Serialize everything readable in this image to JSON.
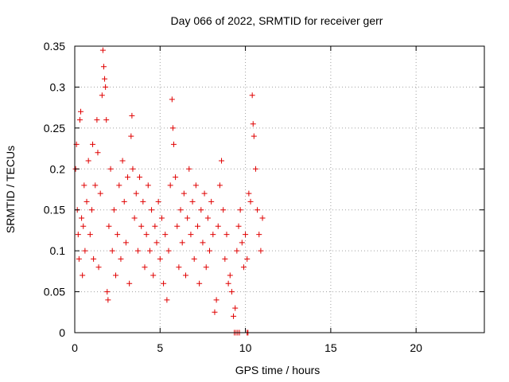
{
  "chart_data": {
    "type": "scatter",
    "title": "Day 066 of 2022, SRMTID for receiver gerr",
    "xlabel": "GPS time / hours",
    "ylabel": "SRMTID / TECUs",
    "xlim": [
      0,
      24
    ],
    "ylim": [
      0,
      0.35
    ],
    "xticks": [
      0,
      5,
      10,
      15,
      20
    ],
    "xtick_labels": [
      "0",
      "5",
      "10",
      "15",
      "20"
    ],
    "yticks": [
      0,
      0.05,
      0.1,
      0.15,
      0.2,
      0.25,
      0.3,
      0.35
    ],
    "ytick_labels": [
      "0",
      "0.05",
      "0.1",
      "0.15",
      "0.2",
      "0.25",
      "0.3",
      "0.35"
    ],
    "grid": true,
    "marker": "plus",
    "color": "#e00000",
    "series": [
      {
        "points": [
          [
            0.05,
            0.2
          ],
          [
            0.1,
            0.23
          ],
          [
            0.15,
            0.15
          ],
          [
            0.2,
            0.12
          ],
          [
            0.25,
            0.09
          ],
          [
            0.3,
            0.26
          ],
          [
            0.35,
            0.27
          ],
          [
            0.4,
            0.14
          ],
          [
            0.45,
            0.07
          ],
          [
            0.5,
            0.13
          ],
          [
            0.55,
            0.18
          ],
          [
            0.6,
            0.1
          ],
          [
            0.7,
            0.16
          ],
          [
            0.8,
            0.21
          ],
          [
            0.9,
            0.12
          ],
          [
            1.0,
            0.15
          ],
          [
            1.05,
            0.23
          ],
          [
            1.1,
            0.09
          ],
          [
            1.2,
            0.18
          ],
          [
            1.3,
            0.26
          ],
          [
            1.35,
            0.22
          ],
          [
            1.4,
            0.08
          ],
          [
            1.5,
            0.17
          ],
          [
            1.6,
            0.29
          ],
          [
            1.65,
            0.345
          ],
          [
            1.7,
            0.325
          ],
          [
            1.75,
            0.31
          ],
          [
            1.8,
            0.3
          ],
          [
            1.85,
            0.26
          ],
          [
            1.9,
            0.05
          ],
          [
            1.95,
            0.04
          ],
          [
            2.0,
            0.13
          ],
          [
            2.1,
            0.2
          ],
          [
            2.2,
            0.1
          ],
          [
            2.3,
            0.15
          ],
          [
            2.4,
            0.07
          ],
          [
            2.5,
            0.12
          ],
          [
            2.6,
            0.18
          ],
          [
            2.7,
            0.09
          ],
          [
            2.8,
            0.21
          ],
          [
            2.9,
            0.16
          ],
          [
            3.0,
            0.11
          ],
          [
            3.1,
            0.19
          ],
          [
            3.2,
            0.06
          ],
          [
            3.3,
            0.24
          ],
          [
            3.35,
            0.265
          ],
          [
            3.4,
            0.2
          ],
          [
            3.5,
            0.14
          ],
          [
            3.6,
            0.17
          ],
          [
            3.7,
            0.1
          ],
          [
            3.8,
            0.19
          ],
          [
            3.9,
            0.13
          ],
          [
            4.0,
            0.16
          ],
          [
            4.1,
            0.08
          ],
          [
            4.2,
            0.12
          ],
          [
            4.3,
            0.18
          ],
          [
            4.4,
            0.1
          ],
          [
            4.5,
            0.15
          ],
          [
            4.6,
            0.07
          ],
          [
            4.7,
            0.13
          ],
          [
            4.8,
            0.11
          ],
          [
            4.9,
            0.16
          ],
          [
            5.0,
            0.09
          ],
          [
            5.1,
            0.14
          ],
          [
            5.2,
            0.06
          ],
          [
            5.3,
            0.12
          ],
          [
            5.4,
            0.04
          ],
          [
            5.5,
            0.1
          ],
          [
            5.6,
            0.18
          ],
          [
            5.7,
            0.285
          ],
          [
            5.75,
            0.25
          ],
          [
            5.8,
            0.23
          ],
          [
            5.9,
            0.19
          ],
          [
            6.0,
            0.13
          ],
          [
            6.1,
            0.08
          ],
          [
            6.2,
            0.15
          ],
          [
            6.3,
            0.11
          ],
          [
            6.4,
            0.17
          ],
          [
            6.5,
            0.07
          ],
          [
            6.6,
            0.14
          ],
          [
            6.7,
            0.2
          ],
          [
            6.8,
            0.12
          ],
          [
            6.9,
            0.16
          ],
          [
            7.0,
            0.09
          ],
          [
            7.1,
            0.18
          ],
          [
            7.2,
            0.13
          ],
          [
            7.3,
            0.06
          ],
          [
            7.4,
            0.15
          ],
          [
            7.5,
            0.11
          ],
          [
            7.6,
            0.17
          ],
          [
            7.7,
            0.08
          ],
          [
            7.8,
            0.14
          ],
          [
            7.9,
            0.1
          ],
          [
            8.0,
            0.16
          ],
          [
            8.1,
            0.12
          ],
          [
            8.2,
            0.025
          ],
          [
            8.3,
            0.04
          ],
          [
            8.4,
            0.13
          ],
          [
            8.5,
            0.18
          ],
          [
            8.6,
            0.21
          ],
          [
            8.7,
            0.15
          ],
          [
            8.8,
            0.09
          ],
          [
            8.9,
            0.12
          ],
          [
            9.0,
            0.06
          ],
          [
            9.1,
            0.07
          ],
          [
            9.2,
            0.05
          ],
          [
            9.3,
            0.02
          ],
          [
            9.4,
            0.03
          ],
          [
            9.5,
            0.1
          ],
          [
            9.6,
            0.13
          ],
          [
            9.7,
            0.15
          ],
          [
            9.8,
            0.11
          ],
          [
            9.9,
            0.08
          ],
          [
            10.0,
            0.12
          ],
          [
            10.1,
            0.09
          ],
          [
            10.2,
            0.17
          ],
          [
            10.3,
            0.16
          ],
          [
            10.4,
            0.29
          ],
          [
            10.45,
            0.255
          ],
          [
            10.5,
            0.24
          ],
          [
            10.6,
            0.2
          ],
          [
            10.7,
            0.15
          ],
          [
            10.8,
            0.12
          ],
          [
            10.9,
            0.1
          ],
          [
            11.0,
            0.14
          ],
          [
            9.35,
            0.0
          ],
          [
            9.45,
            0.0
          ],
          [
            9.55,
            0.0
          ],
          [
            9.65,
            0.0
          ],
          [
            10.1,
            0.0
          ],
          [
            10.15,
            0.0
          ]
        ]
      }
    ]
  }
}
